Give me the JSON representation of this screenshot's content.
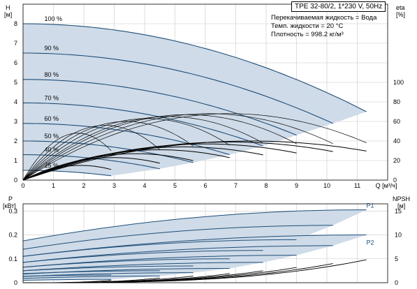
{
  "title": "TPE 32-80/2, 1*230 V, 50Hz",
  "info": [
    "Перекачиваемая жидкость = Вода",
    "Темп. жидкости = 20 °C",
    "Плотность = 998.2 кг/м³"
  ],
  "colors": {
    "area": "#cfdbe8",
    "curve": "#1f4e79",
    "grid": "#c8c8c8",
    "black": "#000000"
  },
  "chart_data": [
    {
      "type": "line",
      "name": "head-efficiency",
      "x_label": "Q [м³/ч]",
      "xlim": [
        0,
        12
      ],
      "x_ticks": [
        0,
        1,
        2,
        3,
        4,
        5,
        6,
        7,
        8,
        9,
        10,
        11
      ],
      "y_label_left": "H",
      "y_unit_left": "[м]",
      "ylim_left": [
        0,
        9
      ],
      "y_ticks_left": [
        0,
        1,
        2,
        3,
        4,
        5,
        6,
        7,
        8
      ],
      "y_label_right": "eta",
      "y_unit_right": "[%]",
      "ylim_right": [
        0,
        180
      ],
      "y_ticks_right": [
        0,
        20,
        40,
        60,
        80,
        100
      ],
      "grid": true,
      "head_curves": [
        {
          "label": "100 %",
          "q_max": 11.3,
          "h0": 8.0,
          "h_end": 3.5
        },
        {
          "label": "90 %",
          "q_max": 10.2,
          "h0": 6.5,
          "h_end": 2.9
        },
        {
          "label": "80 %",
          "q_max": 9.0,
          "h0": 5.15,
          "h_end": 2.3
        },
        {
          "label": "70 %",
          "q_max": 7.9,
          "h0": 3.95,
          "h_end": 1.75
        },
        {
          "label": "60 %",
          "q_max": 6.8,
          "h0": 2.9,
          "h_end": 1.3
        },
        {
          "label": "50 %",
          "q_max": 5.6,
          "h0": 2.0,
          "h_end": 0.9
        },
        {
          "label": "40 %",
          "q_max": 4.5,
          "h0": 1.3,
          "h_end": 0.58
        },
        {
          "label": "25 %",
          "q_max": 2.9,
          "h0": 0.5,
          "h_end": 0.22
        }
      ],
      "eta_curves": [
        {
          "q_max": 11.3,
          "peak": 68,
          "q_peak": 6.8
        },
        {
          "q_max": 10.2,
          "peak": 68,
          "q_peak": 6.1
        },
        {
          "q_max": 9.0,
          "peak": 67,
          "q_peak": 5.4
        },
        {
          "q_max": 7.9,
          "peak": 65,
          "q_peak": 4.8
        },
        {
          "q_max": 6.8,
          "peak": 63,
          "q_peak": 4.1
        },
        {
          "q_max": 5.6,
          "peak": 60,
          "q_peak": 3.4
        },
        {
          "q_max": 4.5,
          "peak": 56,
          "q_peak": 2.7
        },
        {
          "q_max": 2.9,
          "peak": 48,
          "q_peak": 1.8
        }
      ],
      "eta_low_curves": [
        {
          "q_max": 11.3,
          "peak": 40,
          "q_peak": 7.5
        },
        {
          "q_max": 10.2,
          "peak": 39,
          "q_peak": 6.8
        },
        {
          "q_max": 9.0,
          "peak": 37,
          "q_peak": 6.0
        },
        {
          "q_max": 7.9,
          "peak": 34,
          "q_peak": 5.3
        },
        {
          "q_max": 6.8,
          "peak": 31,
          "q_peak": 4.5
        },
        {
          "q_max": 5.6,
          "peak": 27,
          "q_peak": 3.7
        },
        {
          "q_max": 4.5,
          "peak": 23,
          "q_peak": 3.0
        },
        {
          "q_max": 2.9,
          "peak": 15,
          "q_peak": 1.9
        }
      ]
    },
    {
      "type": "line",
      "name": "power-npsh",
      "xlim": [
        0,
        12
      ],
      "y_label_left": "P",
      "y_unit_left": "[кВт]",
      "ylim_left": [
        0,
        0.33
      ],
      "y_ticks_left": [
        0,
        0.1,
        0.2,
        0.3
      ],
      "y_label_right": "NPSH",
      "y_unit_right": "[м]",
      "ylim_right": [
        0,
        16.5
      ],
      "y_ticks_right": [
        0,
        5,
        10,
        15
      ],
      "grid": true,
      "series_labels": [
        "P1",
        "P2"
      ],
      "p1_curves": [
        {
          "q_max": 11.3,
          "p0": 0.175,
          "p_end": 0.305
        },
        {
          "q_max": 10.2,
          "p0": 0.14,
          "p_end": 0.24
        },
        {
          "q_max": 9.0,
          "p0": 0.11,
          "p_end": 0.18
        },
        {
          "q_max": 7.9,
          "p0": 0.085,
          "p_end": 0.135
        },
        {
          "q_max": 6.8,
          "p0": 0.065,
          "p_end": 0.1
        },
        {
          "q_max": 5.6,
          "p0": 0.05,
          "p_end": 0.07
        },
        {
          "q_max": 4.5,
          "p0": 0.038,
          "p_end": 0.05
        },
        {
          "q_max": 2.9,
          "p0": 0.027,
          "p_end": 0.032
        }
      ],
      "p2_curves": [
        {
          "q_max": 11.3,
          "p0": 0.11,
          "p_end": 0.2
        },
        {
          "q_max": 10.2,
          "p0": 0.085,
          "p_end": 0.155
        },
        {
          "q_max": 9.0,
          "p0": 0.065,
          "p_end": 0.115
        },
        {
          "q_max": 7.9,
          "p0": 0.05,
          "p_end": 0.085
        },
        {
          "q_max": 6.8,
          "p0": 0.036,
          "p_end": 0.06
        },
        {
          "q_max": 5.6,
          "p0": 0.026,
          "p_end": 0.042
        },
        {
          "q_max": 4.5,
          "p0": 0.018,
          "p_end": 0.028
        },
        {
          "q_max": 2.9,
          "p0": 0.01,
          "p_end": 0.014
        }
      ],
      "npsh_curves": [
        {
          "q_max": 11.3,
          "n_end": 4.8
        },
        {
          "q_max": 10.2,
          "n_end": 4.0
        },
        {
          "q_max": 9.0,
          "n_end": 3.2
        },
        {
          "q_max": 7.9,
          "n_end": 2.5
        },
        {
          "q_max": 6.8,
          "n_end": 1.9
        },
        {
          "q_max": 5.6,
          "n_end": 1.4
        },
        {
          "q_max": 4.5,
          "n_end": 1.0
        },
        {
          "q_max": 2.9,
          "n_end": 0.5
        }
      ]
    }
  ]
}
